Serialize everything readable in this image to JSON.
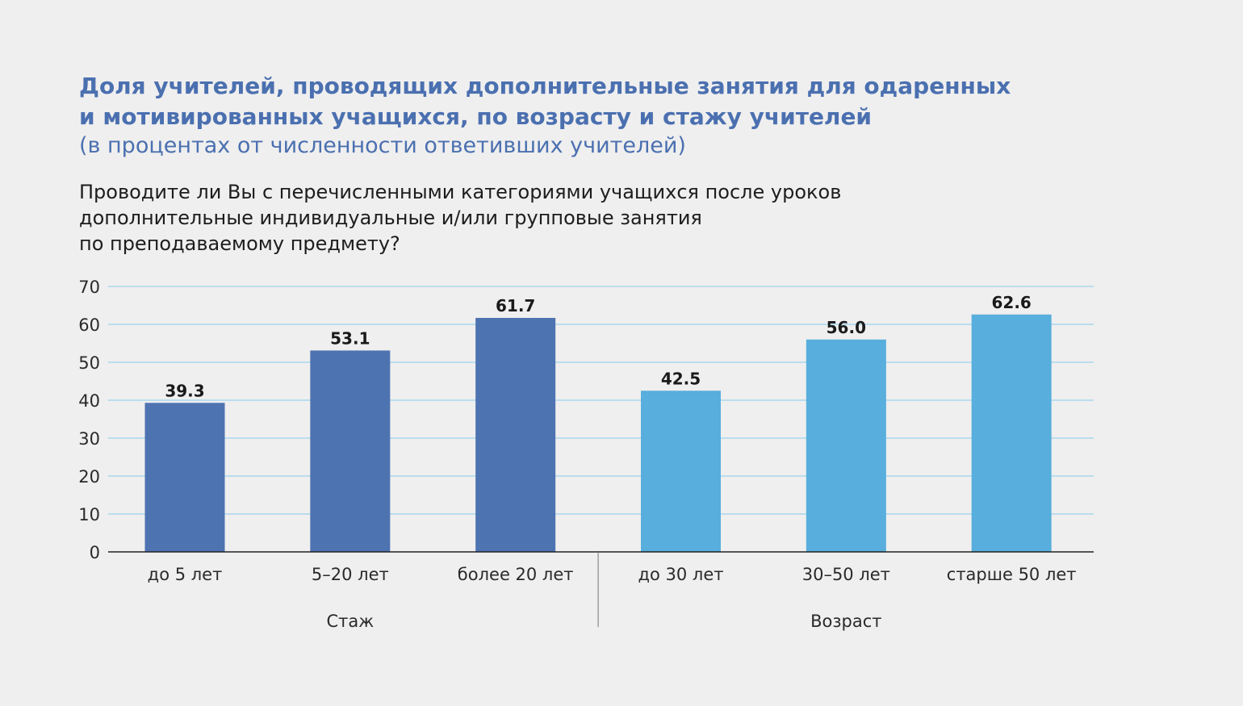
{
  "title_lines": [
    "Доля учителей, проводящих дополнительные занятия для одаренных",
    "и мотивированных учащихся, по возрасту и стажу учителей"
  ],
  "subtitle": "(в процентах от численности ответивших учителей)",
  "question_lines": [
    "Проводите ли Вы с перечисленными категориями учащихся после уроков",
    "дополнительные индивидуальные и/или групповые занятия",
    "по преподаваемому предмету?"
  ],
  "chart_data": {
    "type": "bar",
    "categories": [
      "до 5 лет",
      "5–20 лет",
      "более 20 лет",
      "до 30 лет",
      "30–50 лет",
      "старше 50 лет"
    ],
    "values": [
      39.3,
      53.1,
      61.7,
      42.5,
      56.0,
      62.6
    ],
    "value_labels": [
      "39.3",
      "53.1",
      "61.7",
      "42.5",
      "56.0",
      "62.6"
    ],
    "groups": [
      {
        "label": "Стаж",
        "categories": [
          "до 5 лет",
          "5–20 лет",
          "более 20 лет"
        ],
        "color": "#4e73b1"
      },
      {
        "label": "Возраст",
        "categories": [
          "до 30 лет",
          "30–50 лет",
          "старше 50 лет"
        ],
        "color": "#58aedc"
      }
    ],
    "ylim": [
      0,
      70
    ],
    "yticks": [
      0,
      10,
      20,
      30,
      40,
      50,
      60,
      70
    ],
    "grid": true,
    "grid_color": "#a9d7ee",
    "xlabel": "",
    "ylabel": ""
  }
}
